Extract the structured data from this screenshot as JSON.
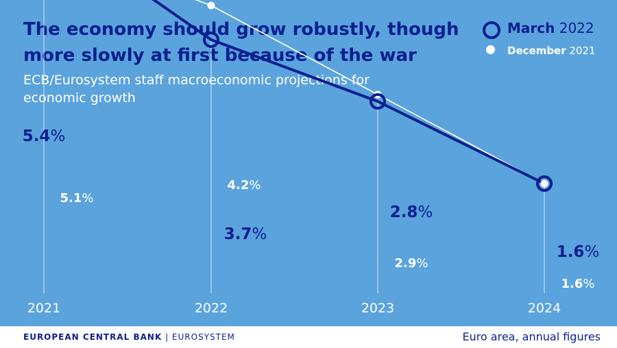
{
  "chart_data": {
    "type": "line",
    "title": "The economy should grow robustly, though more slowly at first because of the war",
    "subtitle": "ECB/Eurosystem staff macroeconomic projections for economic growth",
    "x": [
      "2021",
      "2022",
      "2023",
      "2024"
    ],
    "ylim": [
      0,
      6
    ],
    "grid": false,
    "legend_position": "top-right",
    "series": [
      {
        "name": "March 2022",
        "name_bold": "March",
        "name_rest": " 2022",
        "values": [
          5.4,
          3.7,
          2.8,
          1.6
        ],
        "labels": [
          "5.4%",
          "3.7%",
          "2.8%",
          "1.6%"
        ],
        "color": "#0b1f8f"
      },
      {
        "name": "December 2021",
        "name_bold": "December",
        "name_rest": " 2021",
        "values": [
          5.1,
          4.2,
          2.9,
          1.6
        ],
        "labels": [
          "5.1%",
          "4.2%",
          "2.9%",
          "1.6%"
        ],
        "color": "#ffffff"
      }
    ]
  },
  "colors": {
    "background": "#5ba3dc",
    "primary": "#0b1f8f",
    "secondary": "#ffffff"
  },
  "footer": {
    "brand_bold": "EUROPEAN CENTRAL BANK",
    "brand_rest": " | EUROSYSTEM",
    "note": "Euro area, annual figures"
  }
}
